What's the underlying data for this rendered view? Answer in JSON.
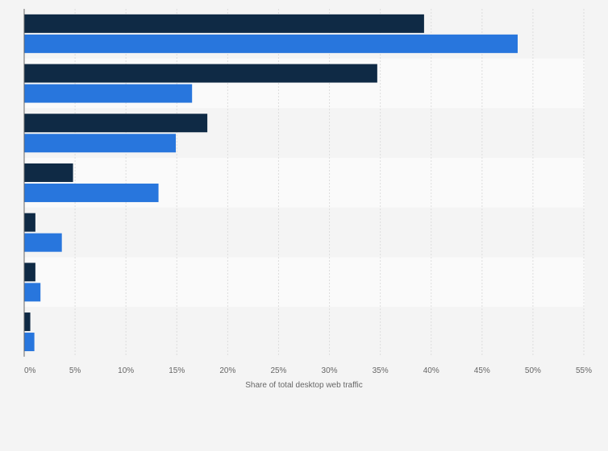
{
  "chart_data": {
    "type": "bar",
    "orientation": "horizontal",
    "title": "",
    "xlabel": "Share of total desktop web traffic",
    "ylabel": "",
    "categories": [
      "",
      "",
      "",
      "",
      "",
      "",
      ""
    ],
    "xlim": [
      0,
      55
    ],
    "x_ticks": [
      0,
      5,
      10,
      15,
      20,
      25,
      30,
      35,
      40,
      45,
      50,
      55
    ],
    "x_tick_labels": [
      "0%",
      "5%",
      "10%",
      "15%",
      "20%",
      "25%",
      "30%",
      "35%",
      "40%",
      "45%",
      "50%",
      "55%"
    ],
    "grid": true,
    "legend": "none",
    "series": [
      {
        "color": "#0f2a45",
        "values": [
          39.3,
          34.7,
          18.0,
          4.8,
          1.1,
          1.1,
          0.6
        ]
      },
      {
        "color": "#2876dd",
        "values": [
          48.5,
          16.5,
          14.9,
          13.2,
          3.7,
          1.6,
          1.0
        ]
      }
    ],
    "band_colors": [
      "#f4f4f4",
      "#fafafa"
    ],
    "grid_color": "#dddddd",
    "axis_color": "#666666"
  }
}
